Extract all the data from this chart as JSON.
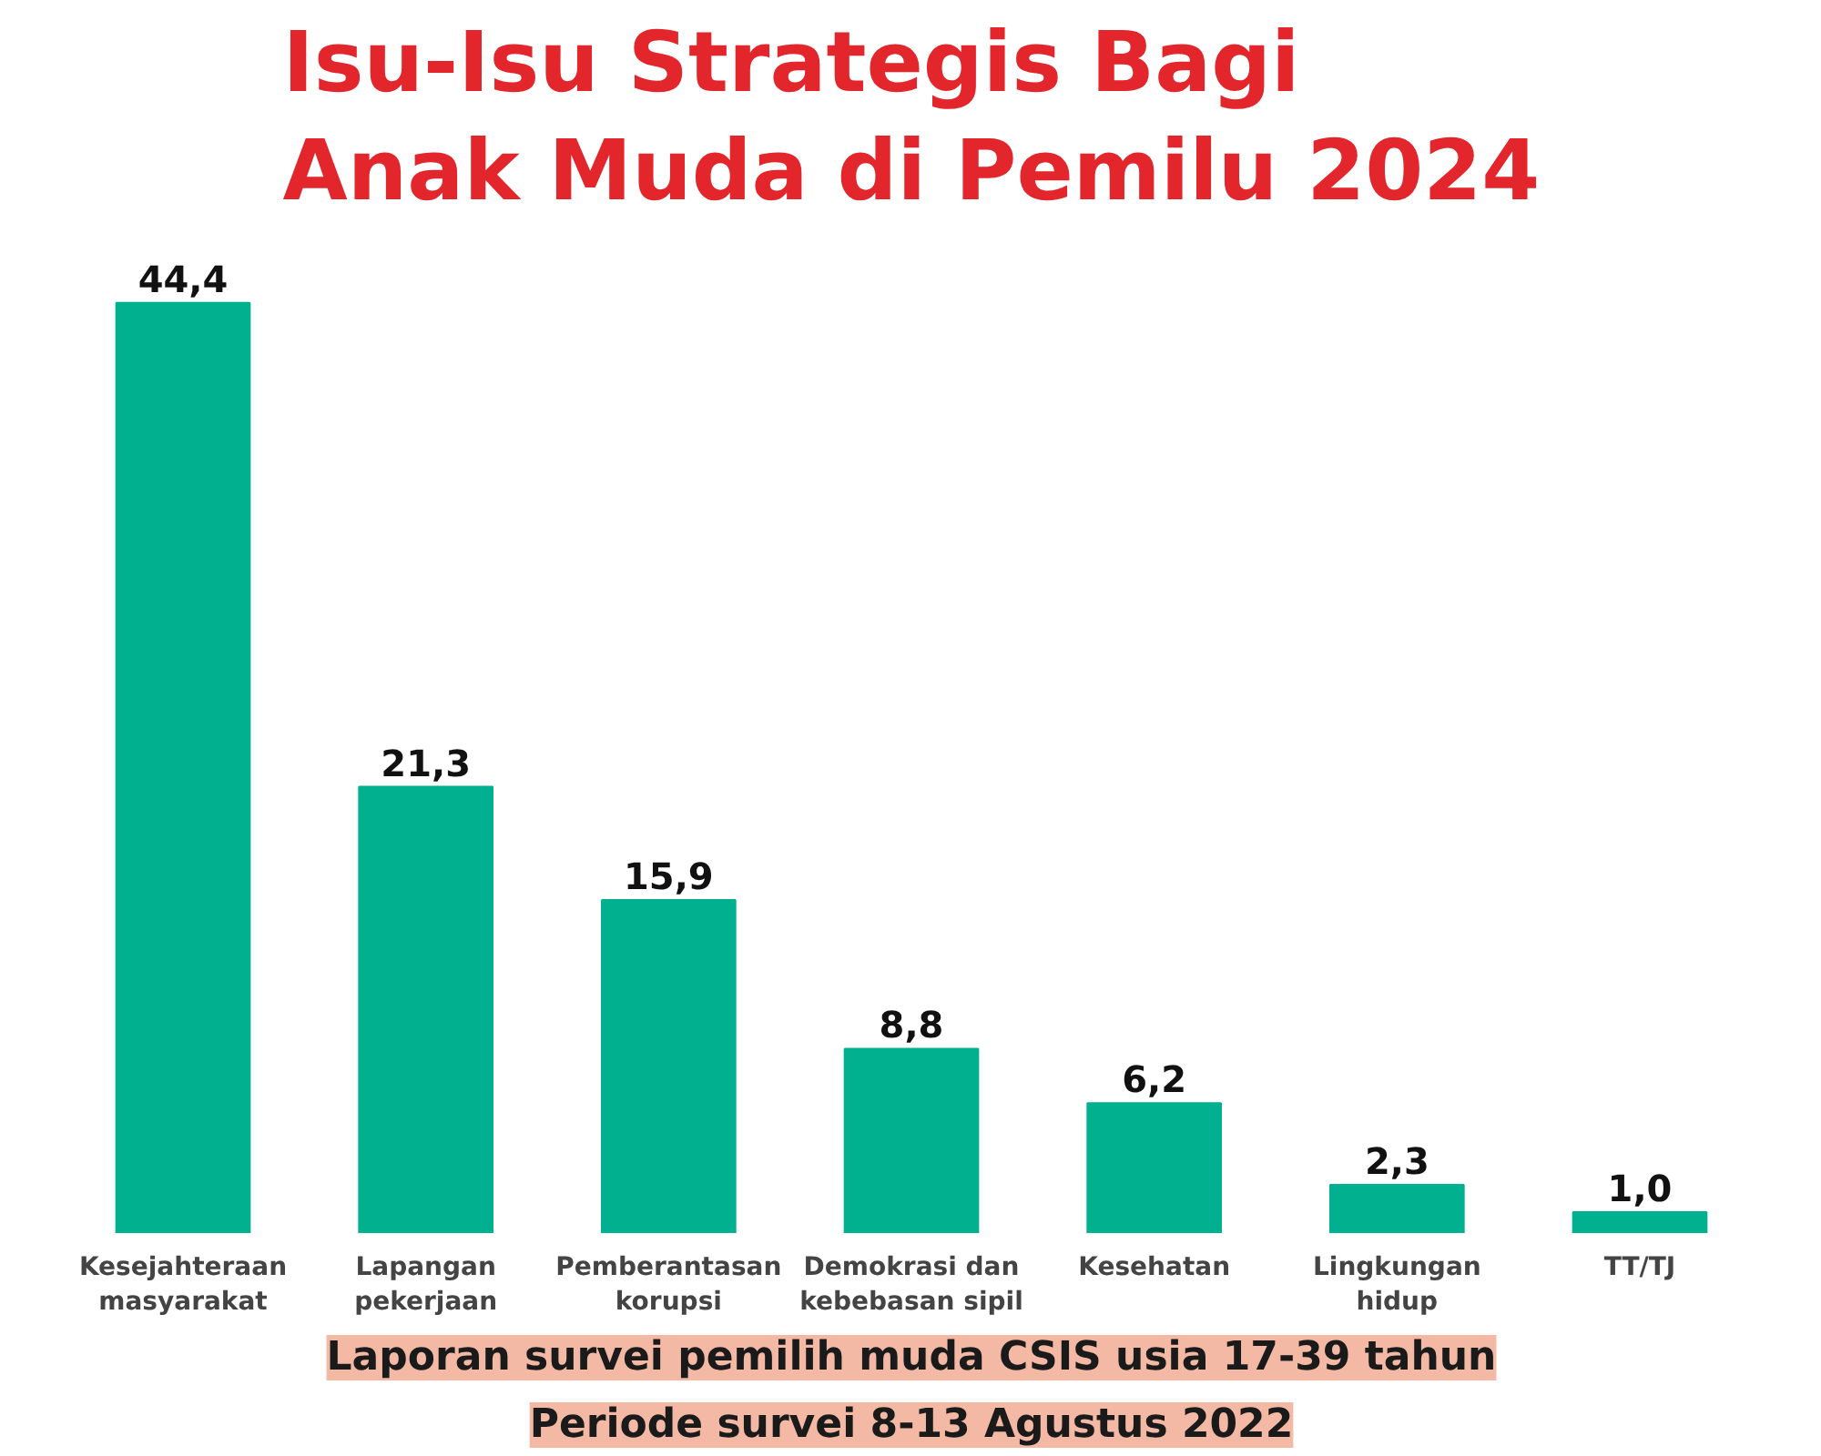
{
  "chart_data": {
    "type": "bar",
    "title": "Isu-Isu Strategis Bagi\nAnak Muda di Pemilu 2024",
    "categories": [
      "Kesejahteraan\nmasyarakat",
      "Lapangan\npekerjaan",
      "Pemberantasan\nkorupsi",
      "Demokrasi dan\nkebebasan sipil",
      "Kesehatan",
      "Lingkungan\nhidup",
      "TT/TJ"
    ],
    "values": [
      44.4,
      21.3,
      15.9,
      8.8,
      6.2,
      2.3,
      1.0
    ],
    "value_labels": [
      "44,4",
      "21,3",
      "15,9",
      "8,8",
      "6,2",
      "2,3",
      "1,0"
    ],
    "color": "#00b08f",
    "annotations": [
      "Laporan survei pemilih muda CSIS usia 17-39 tahun",
      "Periode survei 8-13 Agustus 2022"
    ]
  }
}
